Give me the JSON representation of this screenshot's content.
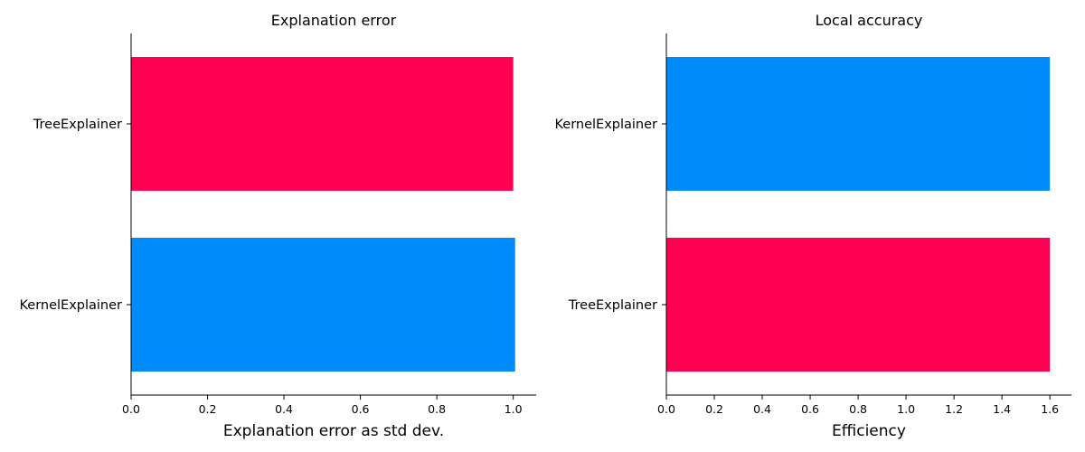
{
  "colors": {
    "tree": "#ff0052",
    "kernel": "#008bfb"
  },
  "chart_data": [
    {
      "type": "bar",
      "orientation": "horizontal",
      "title": "Explanation error",
      "xlabel": "Explanation error as std dev.",
      "ylabel": "",
      "categories": [
        "TreeExplainer",
        "KernelExplainer"
      ],
      "values": [
        1.0,
        1.005
      ],
      "bar_colors": [
        "#ff0052",
        "#008bfb"
      ],
      "xlim": [
        0,
        1.06
      ],
      "xticks": [
        0.0,
        0.2,
        0.4,
        0.6,
        0.8,
        1.0
      ],
      "xtick_labels": [
        "0.0",
        "0.2",
        "0.4",
        "0.6",
        "0.8",
        "1.0"
      ],
      "grid": false,
      "legend": "none"
    },
    {
      "type": "bar",
      "orientation": "horizontal",
      "title": "Local accuracy",
      "xlabel": "Efficiency",
      "ylabel": "",
      "categories": [
        "KernelExplainer",
        "TreeExplainer"
      ],
      "values": [
        1.6,
        1.6
      ],
      "bar_colors": [
        "#008bfb",
        "#ff0052"
      ],
      "xlim": [
        0,
        1.69
      ],
      "xticks": [
        0.0,
        0.2,
        0.4,
        0.6,
        0.8,
        1.0,
        1.2,
        1.4,
        1.6
      ],
      "xtick_labels": [
        "0.0",
        "0.2",
        "0.4",
        "0.6",
        "0.8",
        "1.0",
        "1.2",
        "1.4",
        "1.6"
      ],
      "grid": false,
      "legend": "none"
    }
  ]
}
